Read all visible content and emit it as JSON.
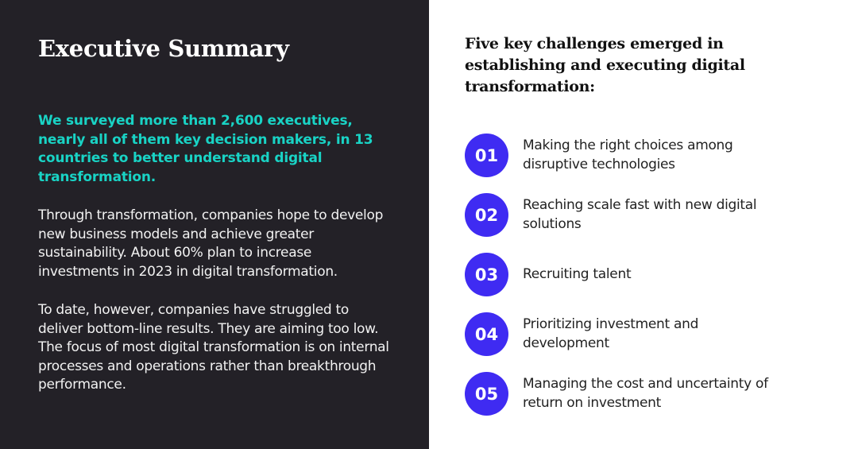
{
  "left": {
    "title": "Executive Summary",
    "highlight": "We surveyed more than 2,600 executives, nearly all of them key decision makers, in 13 countries to better understand digital transformation.",
    "paragraph1": "Through transformation, companies hope to develop new business models and achieve greater sustainability. About 60% plan to increase investments in 2023 in digital transformation.",
    "paragraph2": "To date, however, companies have struggled to deliver bottom-line results. They are aiming too low. The focus of most digital transformation is on internal processes and operations rather than breakthrough performance."
  },
  "right": {
    "heading": "Five key challenges emerged in establishing and executing digital transformation:",
    "challenges": [
      {
        "number": "01",
        "text": "Making the right choices among disruptive technologies"
      },
      {
        "number": "02",
        "text": "Reaching scale fast with new digital solutions"
      },
      {
        "number": "03",
        "text": "Recruiting talent"
      },
      {
        "number": "04",
        "text": "Prioritizing investment and development"
      },
      {
        "number": "05",
        "text": "Managing the cost and uncertainty of return on investment"
      }
    ]
  },
  "colors": {
    "left_background": "#232127",
    "highlight_text": "#19d3c5",
    "number_circle": "#3f2bf2",
    "right_background": "#ffffff"
  }
}
